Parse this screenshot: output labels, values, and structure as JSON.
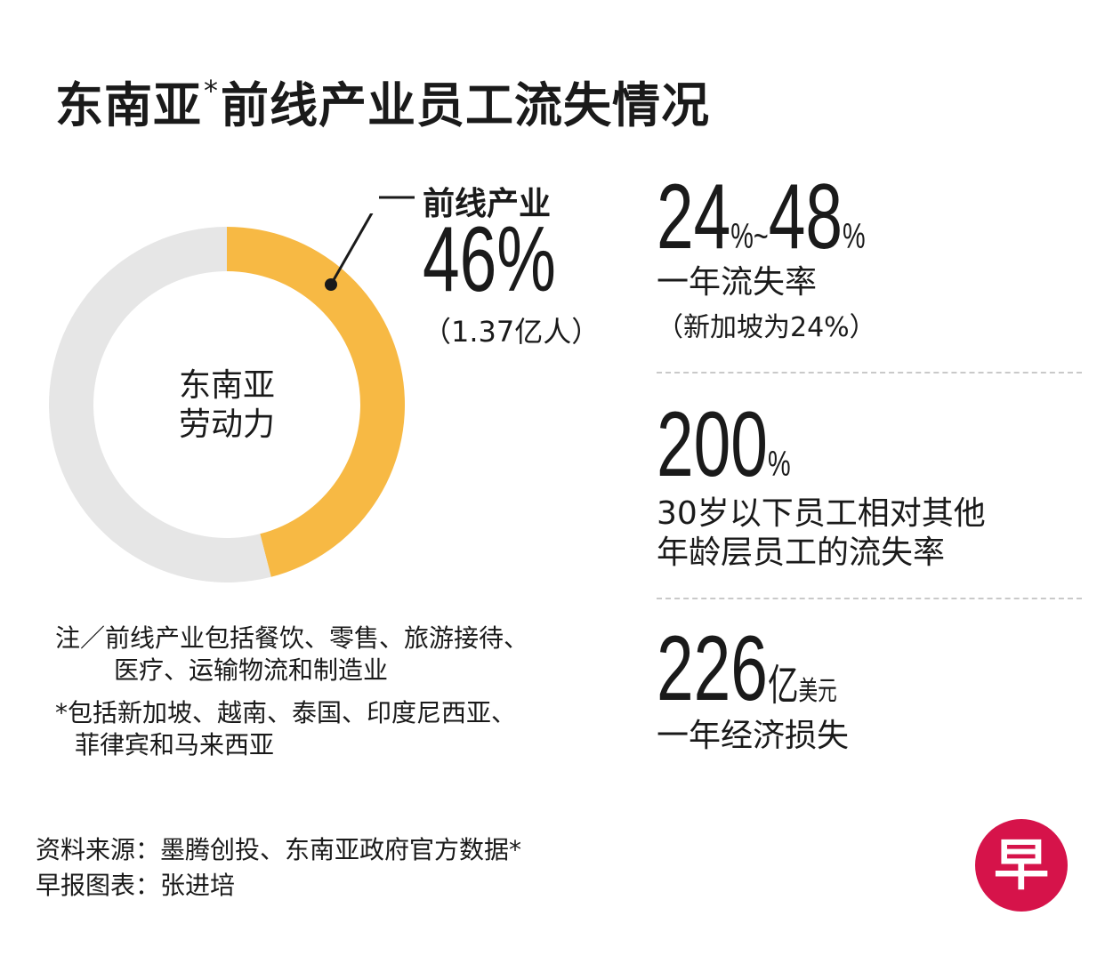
{
  "title": {
    "main_a": "东南亚",
    "asterisk": "*",
    "main_b": "前线产业员工流失情况"
  },
  "chart_data": {
    "type": "pie",
    "center_label_line1": "东南亚",
    "center_label_line2": "劳动力",
    "slices": [
      {
        "label": "前线产业",
        "value": 46,
        "display": "46%",
        "sub": "（1.37亿人）",
        "color": "#f7b944"
      },
      {
        "label": "",
        "value": 54,
        "color": "#e6e6e6"
      }
    ]
  },
  "stats": [
    {
      "value_a": "24",
      "pct_a": "%",
      "tilde": "~",
      "value_b": "48",
      "pct_b": "%",
      "label": "一年流失率",
      "sub": "（新加坡为24%）"
    },
    {
      "value": "200",
      "unit": "%",
      "label_line1": "30岁以下员工相对其他",
      "label_line2": "年龄层员工的流失率"
    },
    {
      "value": "226",
      "unit_a": "亿",
      "unit_b": "美元",
      "label": "一年经济损失"
    }
  ],
  "notes": {
    "line1": "注／前线产业包括餐饮、零售、旅游接待、",
    "line2": "医疗、运输物流和制造业",
    "line3": "*包括新加坡、越南、泰国、印度尼西亚、",
    "line4": "菲律宾和马来西亚"
  },
  "source": {
    "line1": "资料来源：墨腾创投、东南亚政府官方数据*",
    "line2": "早报图表：张进培"
  },
  "logo": {
    "char": "早",
    "color": "#d6134a"
  }
}
